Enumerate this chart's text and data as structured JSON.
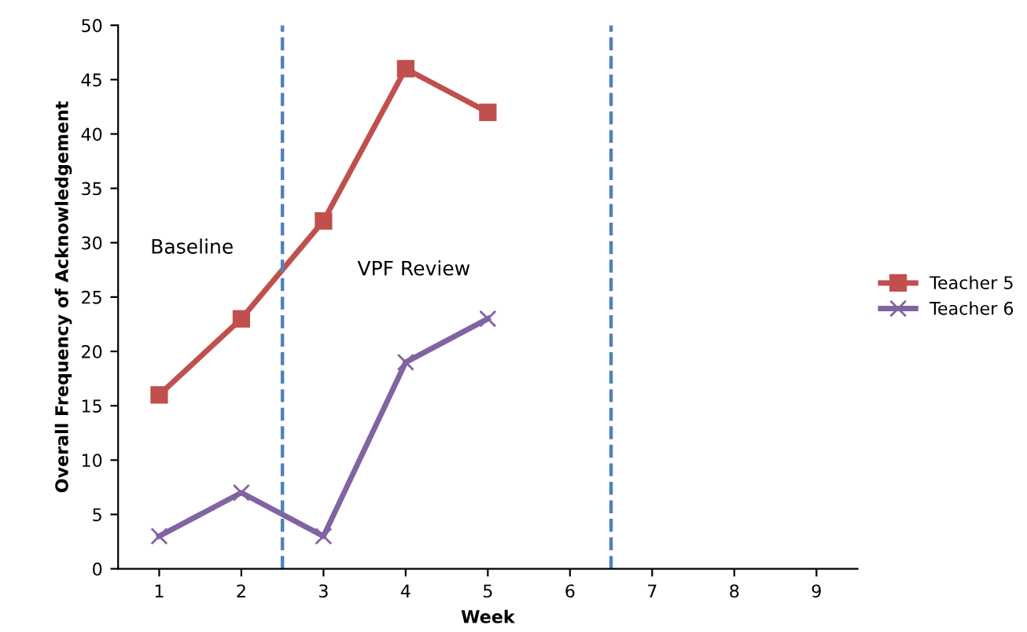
{
  "chart_data": {
    "type": "line",
    "xlabel": "Week",
    "ylabel": "Overall Frequency of Acknowledgement",
    "x": [
      1,
      2,
      3,
      4,
      5
    ],
    "series": [
      {
        "name": "Teacher 5",
        "color": "#c0504d",
        "marker": "square",
        "values": [
          16,
          23,
          32,
          46,
          42
        ]
      },
      {
        "name": "Teacher 6",
        "color": "#8064a2",
        "marker": "cross",
        "values": [
          3,
          7,
          3,
          19,
          23
        ]
      }
    ],
    "xlim": [
      0.5,
      9.5
    ],
    "xticks": [
      1,
      2,
      3,
      4,
      5,
      6,
      7,
      8,
      9
    ],
    "ylim": [
      0,
      50
    ],
    "yticks": [
      0,
      5,
      10,
      15,
      20,
      25,
      30,
      35,
      40,
      45,
      50
    ],
    "ref_lines": [
      {
        "axis": "x",
        "value": 2.5,
        "color": "#4f81bd",
        "line_style": "dashed"
      },
      {
        "axis": "x",
        "value": 6.5,
        "color": "#4f81bd",
        "line_style": "dashed"
      }
    ],
    "annotations": [
      "Baseline",
      "VPF Review"
    ],
    "legend": "right",
    "grid": false
  }
}
